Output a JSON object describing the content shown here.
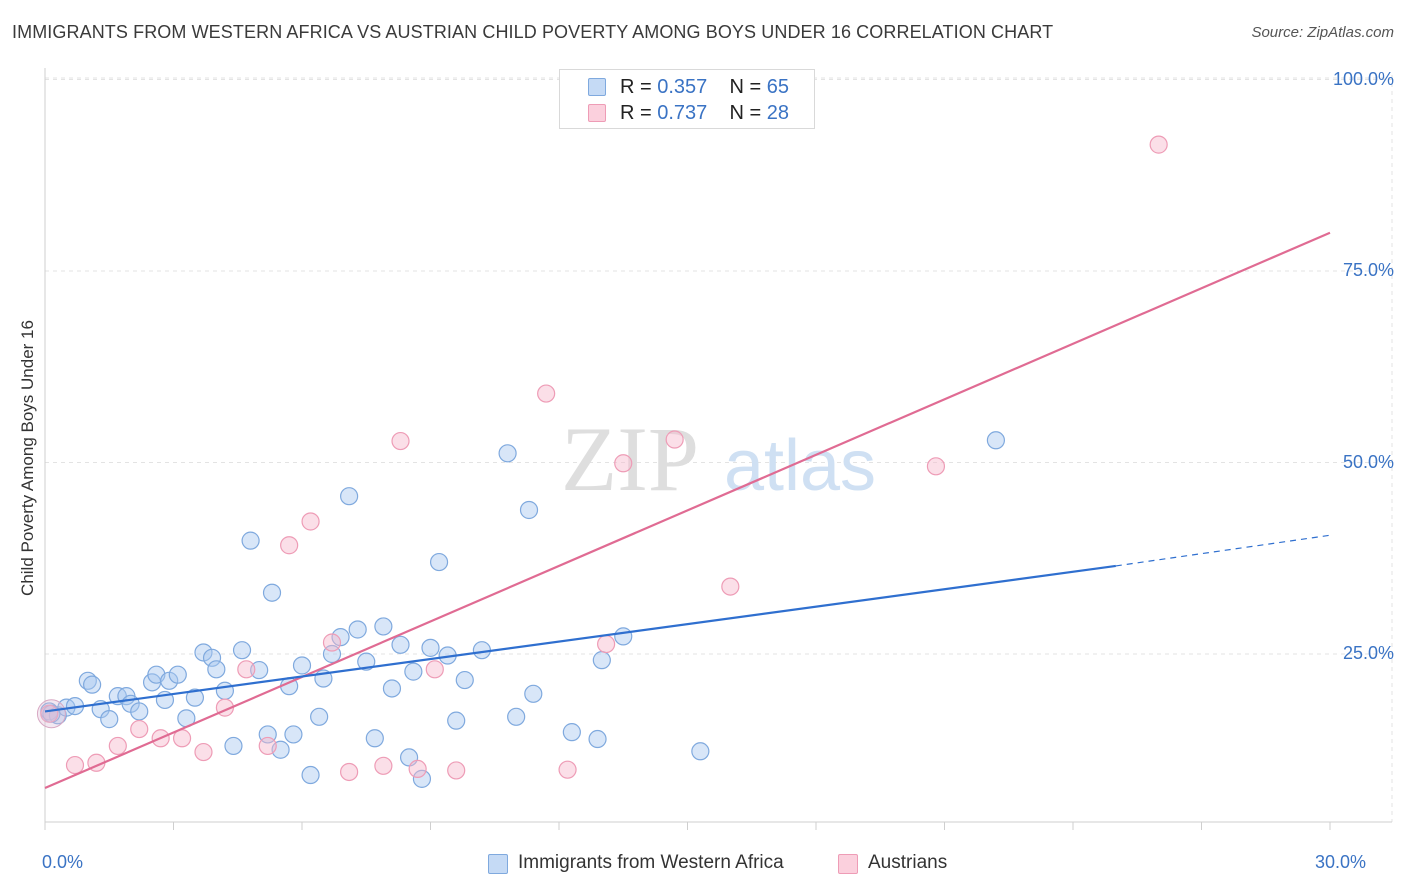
{
  "chart_data": {
    "type": "scatter",
    "title": "IMMIGRANTS FROM WESTERN AFRICA VS AUSTRIAN CHILD POVERTY AMONG BOYS UNDER 16 CORRELATION CHART",
    "source": "Source: ZipAtlas.com",
    "watermark": {
      "zip": "ZIP",
      "atlas": "atlas"
    },
    "xlabel": "",
    "ylabel": "Child Poverty Among Boys Under 16",
    "xlim": [
      0,
      30
    ],
    "ylim": [
      0,
      102
    ],
    "x_tick_labels": [
      {
        "value": 0,
        "label": "0.0%"
      },
      {
        "value": 30,
        "label": "30.0%"
      }
    ],
    "y_tick_labels": [
      {
        "value": 25,
        "label": "25.0%"
      },
      {
        "value": 50,
        "label": "50.0%"
      },
      {
        "value": 75,
        "label": "75.0%"
      },
      {
        "value": 100,
        "label": "100.0%"
      }
    ],
    "grid": true,
    "colors": {
      "blue": "#a9c8f0",
      "blue_line": "#2f6fcf",
      "pink": "#f6b8cb",
      "pink_line": "#e06b93",
      "tick_text": "#3a73c4"
    },
    "legend": {
      "entries": [
        {
          "r_label": "R = ",
          "r_value": "0.357",
          "n_label": "N = ",
          "n_value": "65"
        },
        {
          "r_label": "R = ",
          "r_value": "0.737",
          "n_label": "N = ",
          "n_value": "28"
        }
      ]
    },
    "series": [
      {
        "name": "Immigrants from Western Africa",
        "color": "#a9c8f0",
        "trend": {
          "x0": 0,
          "y0": 17.5,
          "x1": 25,
          "y1": 36.5,
          "dash_to_x": 30,
          "dash_to_y": 40.5
        },
        "points": [
          [
            0.1,
            17.5
          ],
          [
            0.3,
            17.0
          ],
          [
            0.5,
            18.0
          ],
          [
            0.7,
            18.2
          ],
          [
            1.0,
            21.5
          ],
          [
            1.1,
            21.0
          ],
          [
            1.3,
            17.8
          ],
          [
            1.5,
            16.5
          ],
          [
            1.7,
            19.5
          ],
          [
            1.9,
            19.5
          ],
          [
            2.0,
            18.5
          ],
          [
            2.2,
            17.5
          ],
          [
            2.5,
            21.3
          ],
          [
            2.6,
            22.3
          ],
          [
            2.8,
            19.0
          ],
          [
            2.9,
            21.5
          ],
          [
            3.1,
            22.3
          ],
          [
            3.3,
            16.6
          ],
          [
            3.5,
            19.3
          ],
          [
            3.7,
            25.2
          ],
          [
            3.9,
            24.5
          ],
          [
            4.0,
            23.0
          ],
          [
            4.2,
            20.2
          ],
          [
            4.4,
            13.0
          ],
          [
            4.6,
            25.5
          ],
          [
            4.8,
            39.8
          ],
          [
            5.0,
            22.9
          ],
          [
            5.2,
            14.5
          ],
          [
            5.3,
            33.0
          ],
          [
            5.5,
            12.5
          ],
          [
            5.7,
            20.8
          ],
          [
            5.8,
            14.5
          ],
          [
            6.0,
            23.5
          ],
          [
            6.2,
            9.2
          ],
          [
            6.4,
            16.8
          ],
          [
            6.5,
            21.8
          ],
          [
            6.7,
            25.0
          ],
          [
            6.9,
            27.2
          ],
          [
            7.1,
            45.6
          ],
          [
            7.3,
            28.2
          ],
          [
            7.5,
            24.0
          ],
          [
            7.7,
            14.0
          ],
          [
            7.9,
            28.6
          ],
          [
            8.1,
            20.5
          ],
          [
            8.3,
            26.2
          ],
          [
            8.5,
            11.5
          ],
          [
            8.6,
            22.7
          ],
          [
            8.8,
            8.7
          ],
          [
            9.0,
            25.8
          ],
          [
            9.2,
            37.0
          ],
          [
            9.4,
            24.8
          ],
          [
            9.6,
            16.3
          ],
          [
            9.8,
            21.6
          ],
          [
            10.2,
            25.5
          ],
          [
            10.8,
            51.2
          ],
          [
            11.0,
            16.8
          ],
          [
            11.3,
            43.8
          ],
          [
            11.4,
            19.8
          ],
          [
            12.3,
            14.8
          ],
          [
            12.9,
            13.9
          ],
          [
            13.0,
            24.2
          ],
          [
            13.5,
            27.3
          ],
          [
            15.3,
            12.3
          ],
          [
            22.2,
            52.9
          ],
          [
            0.15,
            17.2
          ]
        ]
      },
      {
        "name": "Austrians",
        "color": "#f6b8cb",
        "trend": {
          "x0": 0,
          "y0": 7.5,
          "x1": 30,
          "y1": 80
        },
        "points": [
          [
            0.1,
            17.2
          ],
          [
            0.7,
            10.5
          ],
          [
            1.2,
            10.8
          ],
          [
            1.7,
            13.0
          ],
          [
            2.2,
            15.2
          ],
          [
            2.7,
            14.0
          ],
          [
            3.2,
            14.0
          ],
          [
            3.7,
            12.2
          ],
          [
            4.2,
            18.0
          ],
          [
            4.7,
            23.0
          ],
          [
            5.2,
            13.0
          ],
          [
            5.7,
            39.2
          ],
          [
            6.2,
            42.3
          ],
          [
            6.7,
            26.5
          ],
          [
            7.1,
            9.6
          ],
          [
            7.9,
            10.4
          ],
          [
            8.3,
            52.8
          ],
          [
            8.7,
            10.0
          ],
          [
            9.1,
            23.0
          ],
          [
            9.6,
            9.8
          ],
          [
            11.7,
            59.0
          ],
          [
            12.2,
            9.9
          ],
          [
            13.1,
            26.3
          ],
          [
            13.5,
            49.9
          ],
          [
            14.7,
            53.0
          ],
          [
            16.0,
            33.8
          ],
          [
            20.8,
            49.5
          ],
          [
            26.0,
            91.5
          ]
        ]
      }
    ]
  },
  "bottom_legend": {
    "items": [
      {
        "label": "Immigrants from Western Africa"
      },
      {
        "label": "Austrians"
      }
    ]
  }
}
